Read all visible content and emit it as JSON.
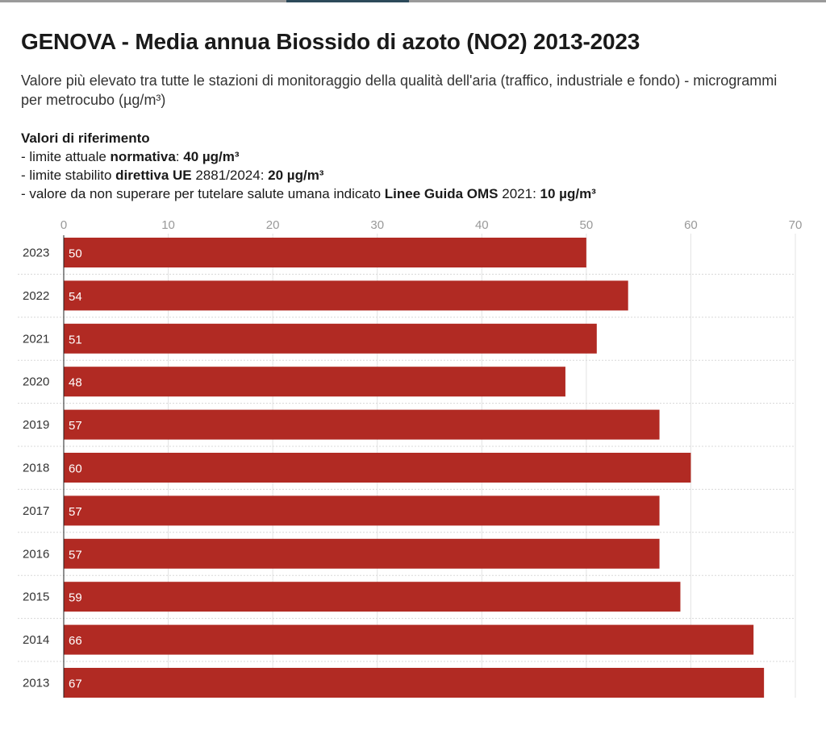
{
  "title": "GENOVA - Media annua Biossido di azoto (NO2) 2013-2023",
  "subtitle": "Valore più elevato tra tutte le stazioni di monitoraggio della qualità dell'aria (traffico, industriale e fondo) - microgrammi per metrocubo (µg/m³)",
  "reference": {
    "heading": "Valori di riferimento",
    "line1": {
      "pre": "- limite attuale ",
      "bold": "normativa",
      "mid": ": ",
      "value": "40 µg/m³"
    },
    "line2": {
      "pre": "- limite stabilito ",
      "bold": "direttiva UE",
      "mid": " 2881/2024: ",
      "value": "20 µg/m³"
    },
    "line3": {
      "pre": "- valore da non superare per tutelare salute umana indicato ",
      "bold": "Linee Guida OMS",
      "mid": " 2021: ",
      "value": "10 µg/m³"
    }
  },
  "colors": {
    "bar": "#b12a23",
    "grid": "#e3e3e3"
  },
  "chart_data": {
    "type": "bar",
    "orientation": "horizontal",
    "title": "GENOVA - Media annua Biossido di azoto (NO2) 2013-2023",
    "xlabel": "",
    "ylabel": "",
    "xlim": [
      0,
      70
    ],
    "ticks": [
      0,
      10,
      20,
      30,
      40,
      50,
      60,
      70
    ],
    "grid": true,
    "categories": [
      "2023",
      "2022",
      "2021",
      "2020",
      "2019",
      "2018",
      "2017",
      "2016",
      "2015",
      "2014",
      "2013"
    ],
    "values": [
      50,
      54,
      51,
      48,
      57,
      60,
      57,
      57,
      59,
      66,
      67
    ]
  }
}
